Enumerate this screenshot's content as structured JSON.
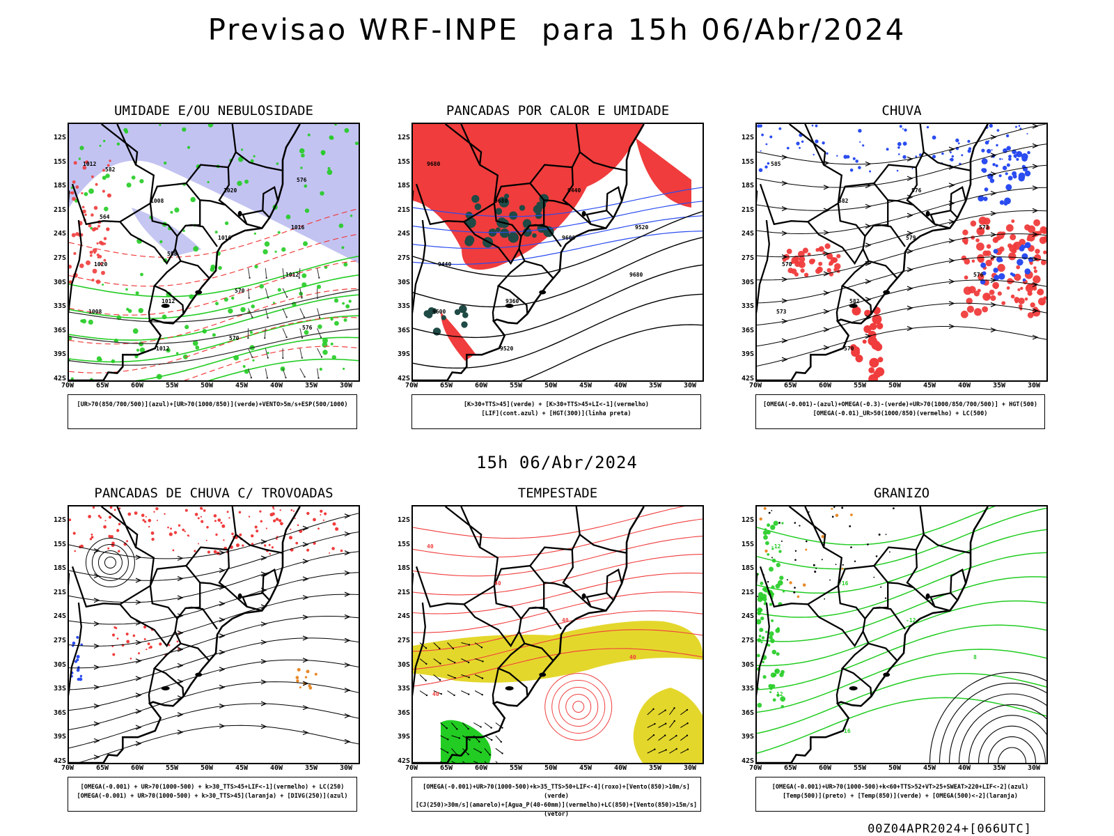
{
  "title": "Previsao WRF-INPE  para 15h 06/Abr/2024",
  "mid_time": "15h 06/Abr/2024",
  "footer": "00Z04APR2024+[066UTC]",
  "axes": {
    "lat_labels": [
      "12S",
      "15S",
      "18S",
      "21S",
      "24S",
      "27S",
      "30S",
      "33S",
      "36S",
      "39S",
      "42S"
    ],
    "lon_labels": [
      "70W",
      "65W",
      "60W",
      "55W",
      "50W",
      "45W",
      "40W",
      "35W",
      "30W"
    ]
  },
  "colors": {
    "red": "#f03c3c",
    "green": "#22cc22",
    "blue": "#2a4cf0",
    "lavender": "#b8b8f0",
    "darkteal": "#1f4a45",
    "yellow": "#e4d72c",
    "orange": "#e88a2a",
    "black": "#000000"
  },
  "panels": [
    {
      "id": "umidade",
      "title": "UMIDADE E/OU NEBULOSIDADE",
      "legend": [
        "[UR>70(850/700/500)](azul)+[UR>70(1000/850)](verde)+VENTO>5m/s+ESP(500/1000)"
      ],
      "contour_labels": [
        "1012",
        "1008",
        "1016",
        "1012",
        "1008",
        "1012",
        "1020",
        "1016",
        "1020",
        "1012",
        "570",
        "576",
        "564",
        "558",
        "570",
        "576",
        "582"
      ]
    },
    {
      "id": "pancadas-calor",
      "title": "PANCADAS POR CALOR E UMIDADE",
      "legend": [
        "[K>30+TTS>45](verde) + [K>30+TTS>45+LI<-1](vermelho)",
        "[LIF](cont.azul) + [HGT(300)](linha preta)"
      ],
      "contour_labels": [
        "9680",
        "9680",
        "9600",
        "9680",
        "9600",
        "9520",
        "9440",
        "9520",
        "9440",
        "9360"
      ]
    },
    {
      "id": "chuva",
      "title": "CHUVA",
      "legend": [
        "[OMEGA(-0.001)-(azul)+OMEGA(-0.3)-(verde)+UR>70(1000/850/700/500)] + HGT(500)",
        "[OMEGA(-0.01)_UR>50(1000/850)(vermelho) + LC(500)"
      ],
      "contour_labels": [
        "585",
        "582",
        "579",
        "576",
        "573",
        "570",
        "576",
        "573",
        "570",
        "582"
      ]
    },
    {
      "id": "pancadas-trovoadas",
      "title": "PANCADAS DE CHUVA C/ TROVOADAS",
      "legend": [
        "[OMEGA(-0.001) + UR>70(1000-500) + k>30_TTS>45+LIF<-1](vermelho) + LC(250)",
        "[OMEGA(-0.001) + UR>70(1000-500) + k>30_TTS>45](laranja) + [DIVG(250)](azul)"
      ],
      "contour_labels": []
    },
    {
      "id": "tempestade",
      "title": "TEMPESTADE",
      "legend": [
        "[OMEGA(-0.001)+UR>70(1000-500)+k>35_TTS>50+LIF<-4](roxo)+[Vento(850)>10m/s](verde)",
        "[CJ(250)>30m/s](amarelo)+[Agua_P(40-60mm)](vermelho)+LC(850)+[Vento(850)>15m/s](vetor)"
      ],
      "contour_labels": [
        "40",
        "40",
        "40",
        "40",
        "40"
      ]
    },
    {
      "id": "granizo",
      "title": "GRANIZO",
      "legend": [
        "[OMEGA(-0.001)+UR>70(1000-500)+k<60+TTS>52+VT>25+SWEAT>220+LIF<-2](azul)",
        "[Temp(500)](preto) + [Temp(850)](verde) + [OMEGA(500)<-2](laranja)"
      ],
      "contour_labels": [
        "-12",
        "-16",
        "-12",
        "8",
        "12",
        "16"
      ]
    }
  ]
}
